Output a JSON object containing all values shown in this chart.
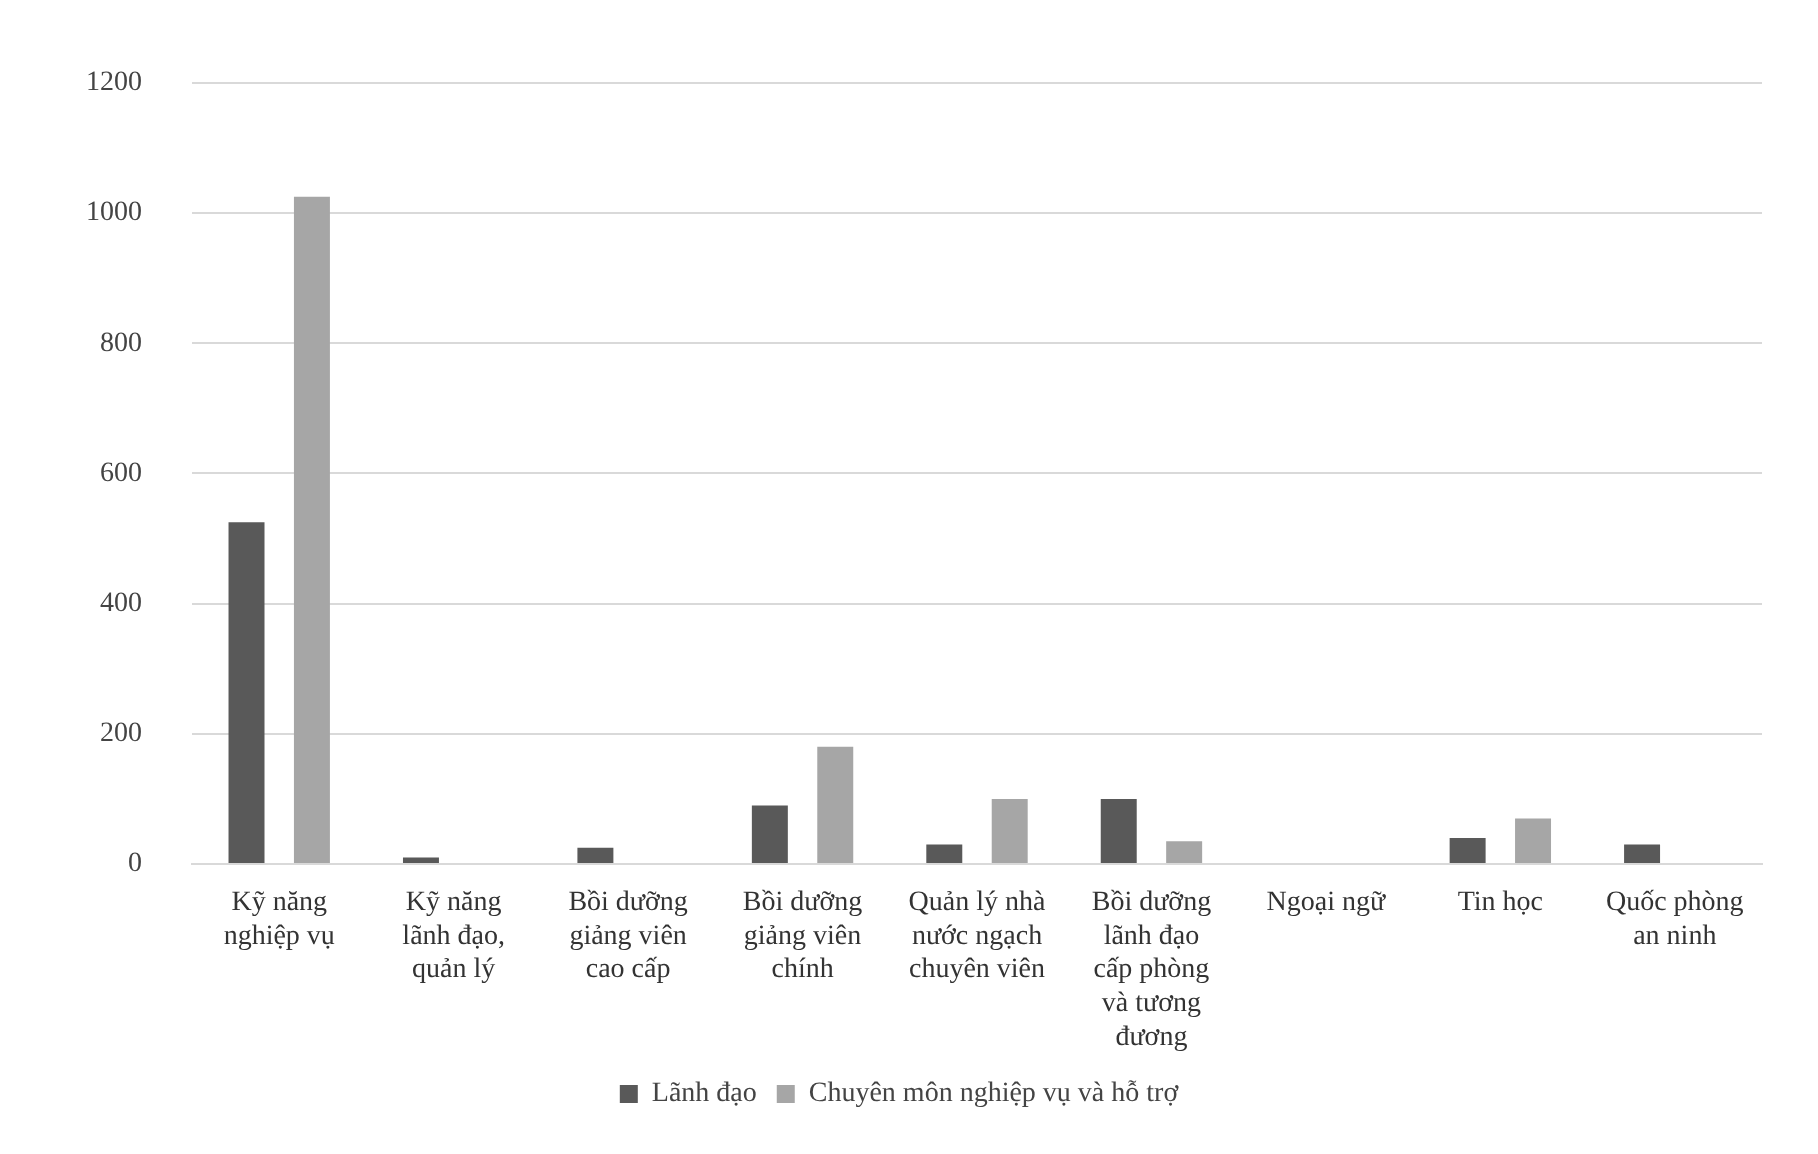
{
  "chart_data": {
    "type": "bar",
    "categories": [
      "Kỹ năng nghiệp vụ",
      "Kỹ năng lãnh đạo, quản lý",
      "Bồi dưỡng giảng viên cao cấp",
      "Bồi dưỡng giảng viên chính",
      "Quản lý nhà nước ngạch chuyên viên",
      "Bồi dưỡng lãnh đạo cấp phòng và tương đương",
      "Ngoại ngữ",
      "Tin học",
      "Quốc phòng an ninh"
    ],
    "series": [
      {
        "name": "Lãnh đạo",
        "color": "#595959",
        "values": [
          525,
          10,
          25,
          90,
          30,
          100,
          0,
          40,
          30
        ]
      },
      {
        "name": "Chuyên môn nghiệp vụ và hỗ trợ",
        "color": "#a6a6a6",
        "values": [
          1025,
          0,
          0,
          180,
          100,
          35,
          0,
          70,
          0
        ]
      }
    ],
    "ylim": [
      0,
      1200
    ],
    "yticks": [
      0,
      200,
      400,
      600,
      800,
      1000,
      1200
    ],
    "grid": "y",
    "legend": "bottom"
  }
}
